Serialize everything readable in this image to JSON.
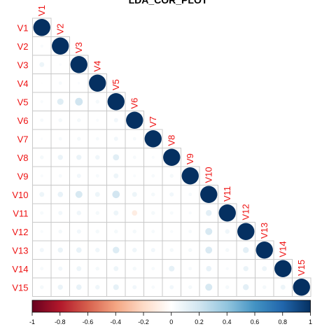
{
  "chart_data": {
    "type": "heatmap",
    "subtype": "correlation-plot-lower-triangle-circles",
    "title": "LDA_COR_PLOT",
    "variables": [
      "V1",
      "V2",
      "V3",
      "V4",
      "V5",
      "V6",
      "V7",
      "V8",
      "V9",
      "V10",
      "V11",
      "V12",
      "V13",
      "V14",
      "V15"
    ],
    "lower_triangle_values": [
      [],
      [
        0.03
      ],
      [
        0.08,
        0.02
      ],
      [
        0.01,
        0.04,
        0.02
      ],
      [
        0.03,
        0.14,
        0.2,
        0.05
      ],
      [
        0.04,
        0.05,
        0.05,
        0.03,
        0.06
      ],
      [
        0.02,
        0.04,
        0.05,
        0.04,
        0.06,
        0.04
      ],
      [
        0.05,
        0.09,
        0.09,
        0.07,
        0.13,
        0.04,
        0.03
      ],
      [
        0.03,
        0.04,
        0.06,
        0.04,
        0.08,
        0.03,
        0.04,
        0.05
      ],
      [
        0.08,
        0.1,
        0.17,
        0.08,
        0.19,
        0.08,
        0.05,
        0.06,
        0.04
      ],
      [
        0.04,
        0.06,
        0.07,
        0.05,
        0.08,
        -0.1,
        0.05,
        0.04,
        0.03,
        0.12
      ],
      [
        0.03,
        0.05,
        0.06,
        0.05,
        0.05,
        0.05,
        0.04,
        0.03,
        0.04,
        0.17,
        0.07
      ],
      [
        0.06,
        0.09,
        0.1,
        0.07,
        0.15,
        0.07,
        0.06,
        0.05,
        0.05,
        0.16,
        0.05,
        0.12
      ],
      [
        0.04,
        0.06,
        0.08,
        0.05,
        0.08,
        0.05,
        0.04,
        0.11,
        0.04,
        0.1,
        0.03,
        0.09,
        0.08
      ],
      [
        0.05,
        0.09,
        0.1,
        0.07,
        0.11,
        0.06,
        0.04,
        0.06,
        0.05,
        0.17,
        0.05,
        0.12,
        0.05,
        0.08
      ]
    ],
    "diagonal_value": 1,
    "color_scale": {
      "min": -1,
      "max": 1,
      "ticks": [
        "-1",
        "-0.8",
        "-0.6",
        "-0.4",
        "-0.2",
        "0",
        "0.2",
        "0.4",
        "0.6",
        "0.8",
        "1"
      ],
      "stops": [
        "#67001f",
        "#b2182b",
        "#d6604d",
        "#f4a582",
        "#fddbc7",
        "#ffffff",
        "#d1e5f0",
        "#92c5de",
        "#4393c3",
        "#2166ac",
        "#053061"
      ]
    },
    "label_color": "#ee1111",
    "grid": true,
    "legend_placement": "bottom"
  }
}
